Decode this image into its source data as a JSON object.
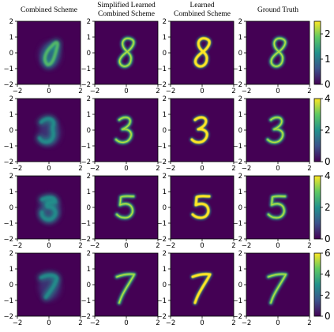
{
  "chart_data": {
    "type": "heatmap",
    "column_titles": [
      [
        "Combined Scheme"
      ],
      [
        "Simplified Learned",
        "Combined Scheme"
      ],
      [
        "Learned",
        "Combined Scheme"
      ],
      [
        "Ground Truth"
      ]
    ],
    "xlim": [
      -2,
      2
    ],
    "ylim": [
      -2,
      2
    ],
    "x_ticks": [
      -2,
      0,
      2
    ],
    "y_ticks": [
      -2,
      -1,
      0,
      1,
      2
    ],
    "colormap": "viridis",
    "colors": {
      "background": "#440154",
      "low": "#3b528b",
      "mid": "#21918c",
      "high": "#5ec962",
      "max": "#fde725"
    },
    "rows": [
      {
        "digit": "8",
        "colorbar": {
          "ticks": [
            0,
            1,
            2
          ],
          "range": [
            0,
            2.5
          ]
        }
      },
      {
        "digit": "3",
        "colorbar": {
          "ticks": [
            0,
            2,
            4
          ],
          "range": [
            0,
            4
          ]
        }
      },
      {
        "digit": "5",
        "colorbar": {
          "ticks": [
            0,
            2,
            4
          ],
          "range": [
            0,
            4
          ]
        }
      },
      {
        "digit": "7",
        "colorbar": {
          "ticks": [
            0,
            2,
            4,
            6
          ],
          "range": [
            0,
            6
          ]
        }
      }
    ]
  }
}
